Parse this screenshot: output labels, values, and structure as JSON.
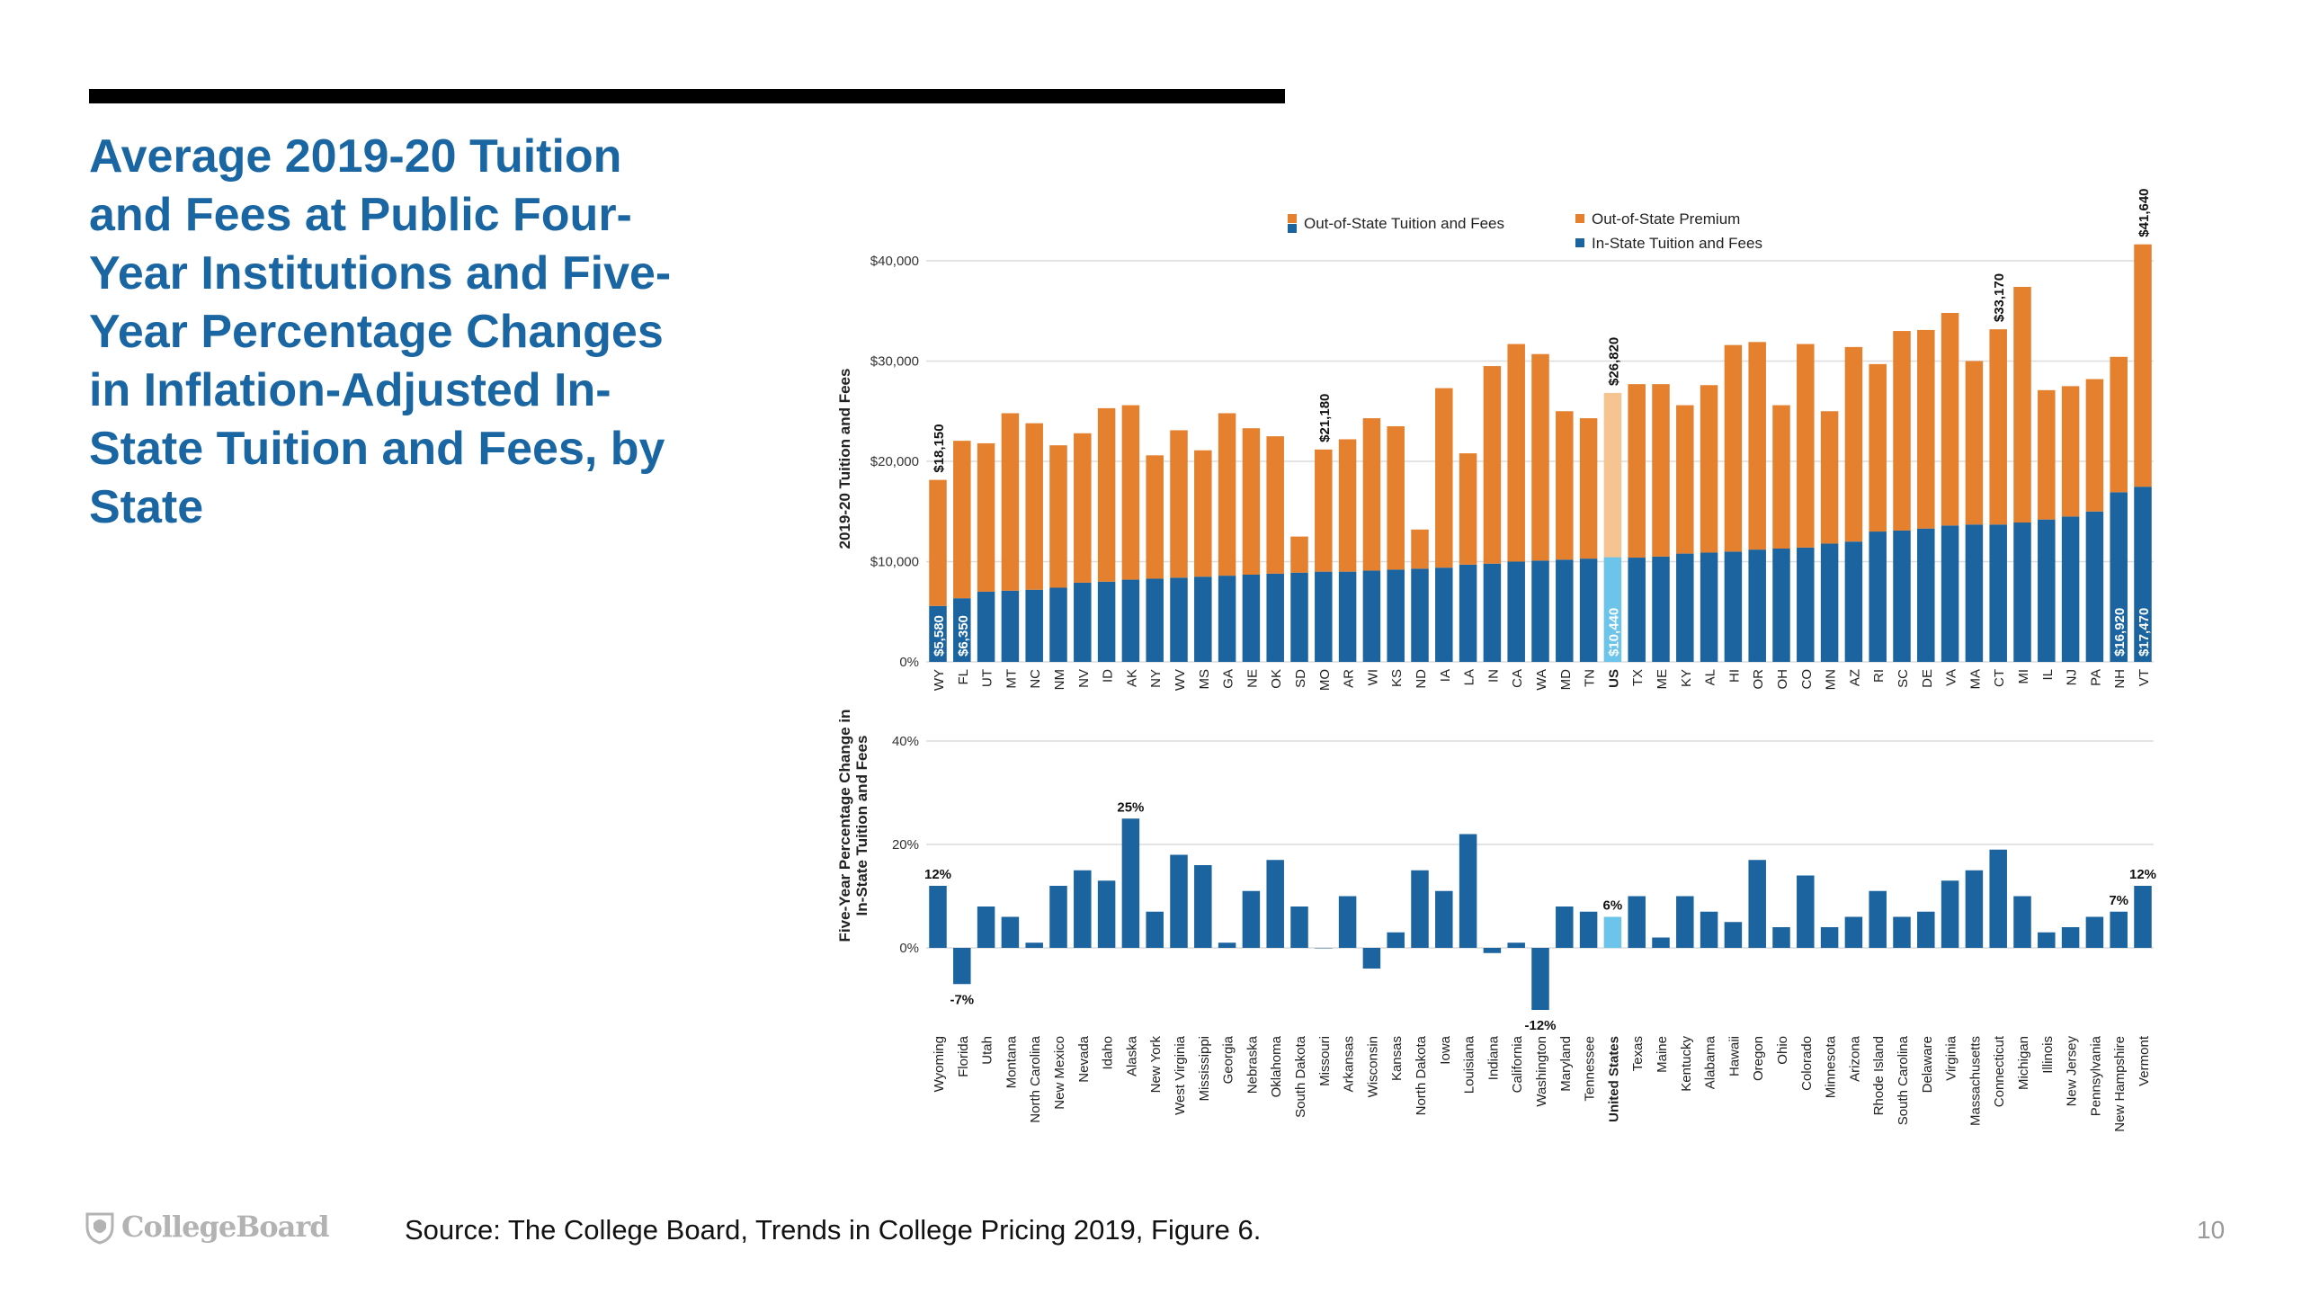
{
  "slide": {
    "title": "Average 2019-20 Tuition and Fees at Public Four-Year Institutions and Five-Year Percentage Changes in Inflation-Adjusted In-State Tuition and Fees, by State",
    "source": "Source: The College Board, Trends in College Pricing 2019, Figure 6.",
    "page_number": "10",
    "logo_text": "CollegeBoard"
  },
  "colors": {
    "in_state": "#1b64a0",
    "premium": "#e4802e",
    "us_in_state": "#6cc4ea",
    "us_premium": "#f6c491",
    "title": "#1a66a3"
  },
  "chart_data": [
    {
      "type": "bar",
      "stacked": true,
      "title": "",
      "ylabel": "2019-20 Tuition and Fees",
      "ylim": [
        0,
        40000
      ],
      "yticks": [
        {
          "value": 0,
          "label": "0%"
        },
        {
          "value": 10000,
          "label": "$10,000"
        },
        {
          "value": 20000,
          "label": "$20,000"
        },
        {
          "value": 30000,
          "label": "$30,000"
        },
        {
          "value": 40000,
          "label": "$40,000"
        }
      ],
      "legend": [
        "Out-of-State Tuition and Fees",
        "Out-of-State Premium",
        "In-State Tuition and Fees"
      ],
      "legend_position": "top",
      "categories": [
        "WY",
        "FL",
        "UT",
        "MT",
        "NC",
        "NM",
        "NV",
        "ID",
        "AK",
        "NY",
        "WV",
        "MS",
        "GA",
        "NE",
        "OK",
        "SD",
        "MO",
        "AR",
        "WI",
        "KS",
        "ND",
        "IA",
        "LA",
        "IN",
        "CA",
        "WA",
        "MD",
        "TN",
        "US",
        "TX",
        "ME",
        "KY",
        "AL",
        "HI",
        "OR",
        "OH",
        "CO",
        "MN",
        "AZ",
        "RI",
        "SC",
        "DE",
        "VA",
        "MA",
        "CT",
        "MI",
        "IL",
        "NJ",
        "PA",
        "NH",
        "VT"
      ],
      "highlight_category": "US",
      "series": [
        {
          "name": "In-State Tuition and Fees",
          "values": [
            5580,
            6350,
            7000,
            7100,
            7200,
            7400,
            7900,
            8000,
            8200,
            8300,
            8400,
            8500,
            8600,
            8700,
            8800,
            8900,
            9000,
            9000,
            9100,
            9200,
            9300,
            9400,
            9700,
            9800,
            10000,
            10100,
            10200,
            10300,
            10440,
            10400,
            10500,
            10800,
            10900,
            11000,
            11200,
            11300,
            11400,
            11800,
            12000,
            13000,
            13100,
            13300,
            13600,
            13700,
            13700,
            13900,
            14200,
            14500,
            15000,
            16920,
            17470
          ]
        },
        {
          "name": "Out-of-State Premium",
          "values": [
            12570,
            15700,
            14800,
            17700,
            16600,
            14200,
            14900,
            17300,
            17400,
            12300,
            14700,
            12600,
            16200,
            14600,
            13700,
            3600,
            12180,
            13200,
            15200,
            14300,
            3900,
            17900,
            11100,
            19700,
            21700,
            20600,
            14800,
            14000,
            16380,
            17300,
            17200,
            14800,
            16700,
            20600,
            20700,
            14300,
            20300,
            13200,
            19400,
            16700,
            19900,
            19800,
            21200,
            16300,
            19470,
            23500,
            12900,
            13000,
            13200,
            13500,
            24170
          ]
        }
      ],
      "data_labels": [
        {
          "category": "WY",
          "total": "$18,150",
          "in_state": "$5,580"
        },
        {
          "category": "FL",
          "in_state": "$6,350"
        },
        {
          "category": "MO",
          "total": "$21,180"
        },
        {
          "category": "US",
          "total": "$26,820",
          "in_state": "$10,440"
        },
        {
          "category": "CT",
          "total": "$33,170"
        },
        {
          "category": "NH",
          "in_state": "$16,920"
        },
        {
          "category": "VT",
          "total": "$41,640",
          "in_state": "$17,470"
        }
      ]
    },
    {
      "type": "bar",
      "title": "",
      "ylabel": "Five-Year Percentage Change in In-State Tuition and Fees",
      "ylim": [
        -15,
        40
      ],
      "yticks": [
        {
          "value": 0,
          "label": "0%"
        },
        {
          "value": 20,
          "label": "20%"
        },
        {
          "value": 40,
          "label": "40%"
        }
      ],
      "categories": [
        "Wyoming",
        "Florida",
        "Utah",
        "Montana",
        "North Carolina",
        "New Mexico",
        "Nevada",
        "Idaho",
        "Alaska",
        "New York",
        "West Virginia",
        "Mississippi",
        "Georgia",
        "Nebraska",
        "Oklahoma",
        "South Dakota",
        "Missouri",
        "Arkansas",
        "Wisconsin",
        "Kansas",
        "North Dakota",
        "Iowa",
        "Louisiana",
        "Indiana",
        "California",
        "Washington",
        "Maryland",
        "Tennessee",
        "United States",
        "Texas",
        "Maine",
        "Kentucky",
        "Alabama",
        "Hawaii",
        "Oregon",
        "Ohio",
        "Colorado",
        "Minnesota",
        "Arizona",
        "Rhode Island",
        "South Carolina",
        "Delaware",
        "Virginia",
        "Massachusetts",
        "Connecticut",
        "Michigan",
        "Illinois",
        "New Jersey",
        "Pennsylvania",
        "New Hampshire",
        "Vermont"
      ],
      "highlight_category": "United States",
      "values": [
        12,
        -7,
        8,
        6,
        1,
        12,
        15,
        13,
        25,
        7,
        18,
        16,
        1,
        11,
        17,
        8,
        0,
        10,
        -4,
        3,
        15,
        11,
        22,
        -1,
        1,
        -12,
        8,
        7,
        6,
        10,
        2,
        10,
        7,
        5,
        17,
        4,
        14,
        4,
        6,
        11,
        6,
        7,
        13,
        15,
        19,
        10,
        3,
        4,
        6,
        7,
        12
      ],
      "data_labels": [
        {
          "category": "Wyoming",
          "label": "12%"
        },
        {
          "category": "Florida",
          "label": "-7%"
        },
        {
          "category": "Alaska",
          "label": "25%"
        },
        {
          "category": "Washington",
          "label": "-12%"
        },
        {
          "category": "United States",
          "label": "6%"
        },
        {
          "category": "New Hampshire",
          "label": "7%"
        },
        {
          "category": "Vermont",
          "label": "12%"
        }
      ]
    }
  ]
}
